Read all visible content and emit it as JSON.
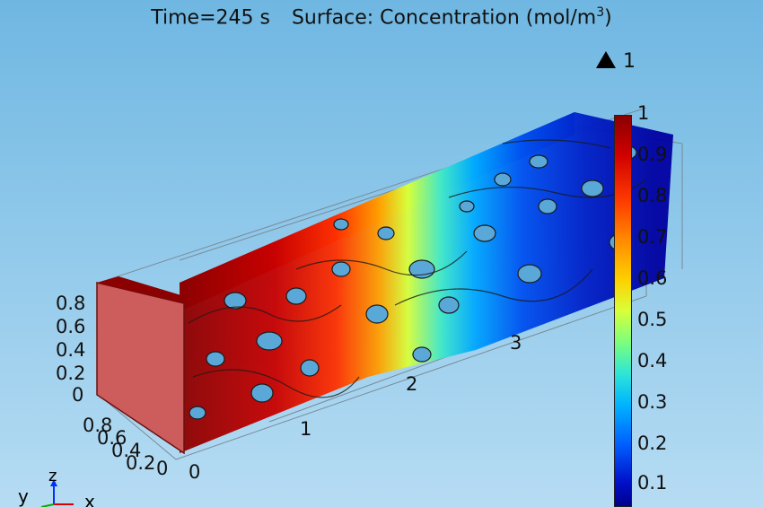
{
  "title": {
    "time": "Time=245 s",
    "surface": "Surface: Concentration (mol/m",
    "superscript": "3",
    "close": ")"
  },
  "max_marker": {
    "icon": "triangle-up-icon",
    "value": "1"
  },
  "colorbar": {
    "ticks": [
      "1",
      "0.9",
      "0.8",
      "0.7",
      "0.6",
      "0.5",
      "0.4",
      "0.3",
      "0.2",
      "0.1"
    ]
  },
  "axes": {
    "z_ticks": [
      "0.8",
      "0.6",
      "0.4",
      "0.2",
      "0"
    ],
    "y_ticks": [
      "0.8",
      "0.6",
      "0.4",
      "0.2",
      "0"
    ],
    "x_ticks": [
      "0",
      "1",
      "2",
      "3"
    ]
  },
  "axis_indicator": {
    "x": "x",
    "y": "y",
    "z": "z"
  }
}
